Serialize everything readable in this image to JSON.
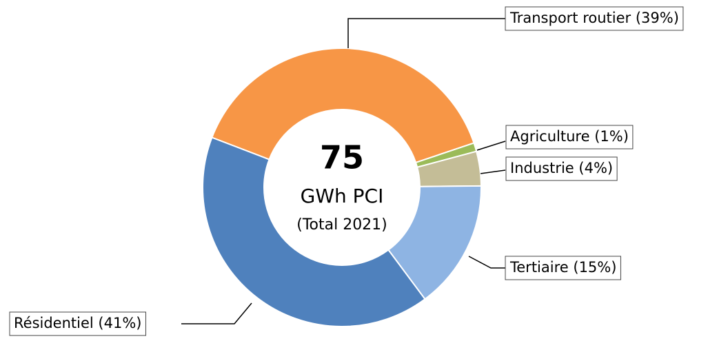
{
  "chart_data": {
    "type": "donut",
    "categories": [
      "Transport routier",
      "Agriculture",
      "Industrie",
      "Tertiaire",
      "Résidentiel"
    ],
    "values": [
      39,
      1,
      4,
      15,
      41
    ],
    "value_labels": [
      "(39%)",
      "(1%)",
      "(4%)",
      "(15%)",
      "(41%)"
    ],
    "colors": [
      "#f79646",
      "#9bbb59",
      "#c4bd97",
      "#8eb4e3",
      "#4f81bd"
    ],
    "total": 75,
    "unit": "GWh PCI",
    "subtitle": "(Total 2021)"
  }
}
